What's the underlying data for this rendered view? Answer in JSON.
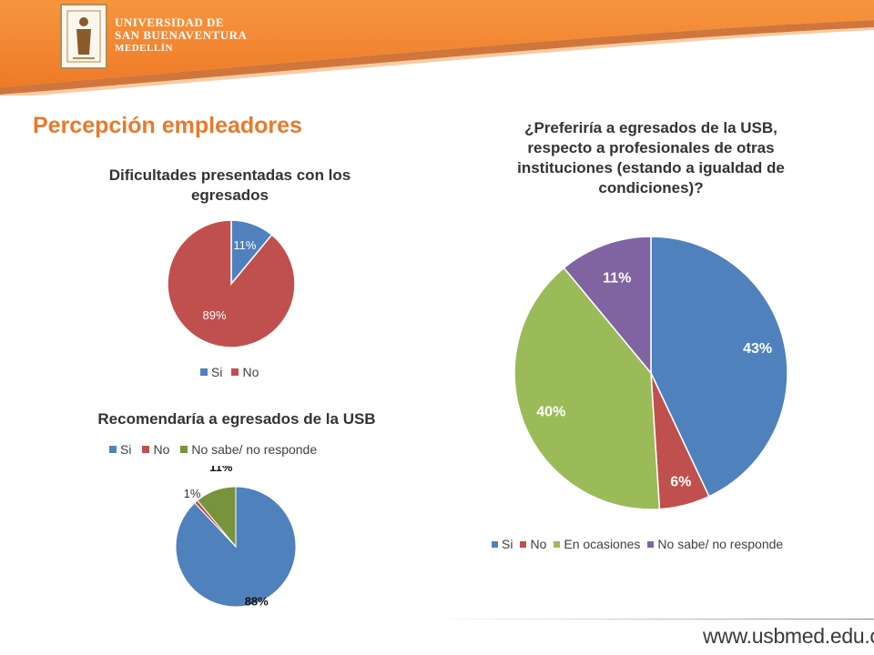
{
  "header": {
    "university_lines": [
      "UNIVERSIDAD DE",
      "SAN BUENAVENTURA",
      "MEDELLÍN"
    ],
    "colors": {
      "band": "#f58633",
      "band_dark": "#dc6a1f"
    }
  },
  "slide_title": "Percepción empleadores",
  "footer": {
    "url": "www.usbmed.edu.co"
  },
  "chart_data": [
    {
      "type": "pie",
      "title": "Dificultades presentadas con los egresados",
      "categories": [
        "Si",
        "No"
      ],
      "values": [
        11,
        89
      ],
      "labels": [
        "11%",
        "89%"
      ],
      "colors": [
        "#4f81bd",
        "#c0504d"
      ],
      "legend": "bottom"
    },
    {
      "type": "pie",
      "title": "Recomendaría a egresados de la USB",
      "categories": [
        "Si",
        "No",
        "No sabe/ no responde"
      ],
      "values": [
        88,
        1,
        11
      ],
      "labels": [
        "88%",
        "1%",
        "11%"
      ],
      "colors": [
        "#4f81bd",
        "#c0504d",
        "#77933c"
      ],
      "legend": "top"
    },
    {
      "type": "pie",
      "title": "¿Preferiría a egresados de la USB, respecto a profesionales de otras instituciones (estando a igualdad de condiciones)?",
      "categories": [
        "Si",
        "No",
        "En ocasiones",
        "No sabe/ no responde"
      ],
      "values": [
        43,
        6,
        40,
        11
      ],
      "labels": [
        "43%",
        "6%",
        "40%",
        "11%"
      ],
      "colors": [
        "#4f81bd",
        "#c0504d",
        "#9bbb59",
        "#8064a2"
      ],
      "legend": "bottom"
    }
  ]
}
